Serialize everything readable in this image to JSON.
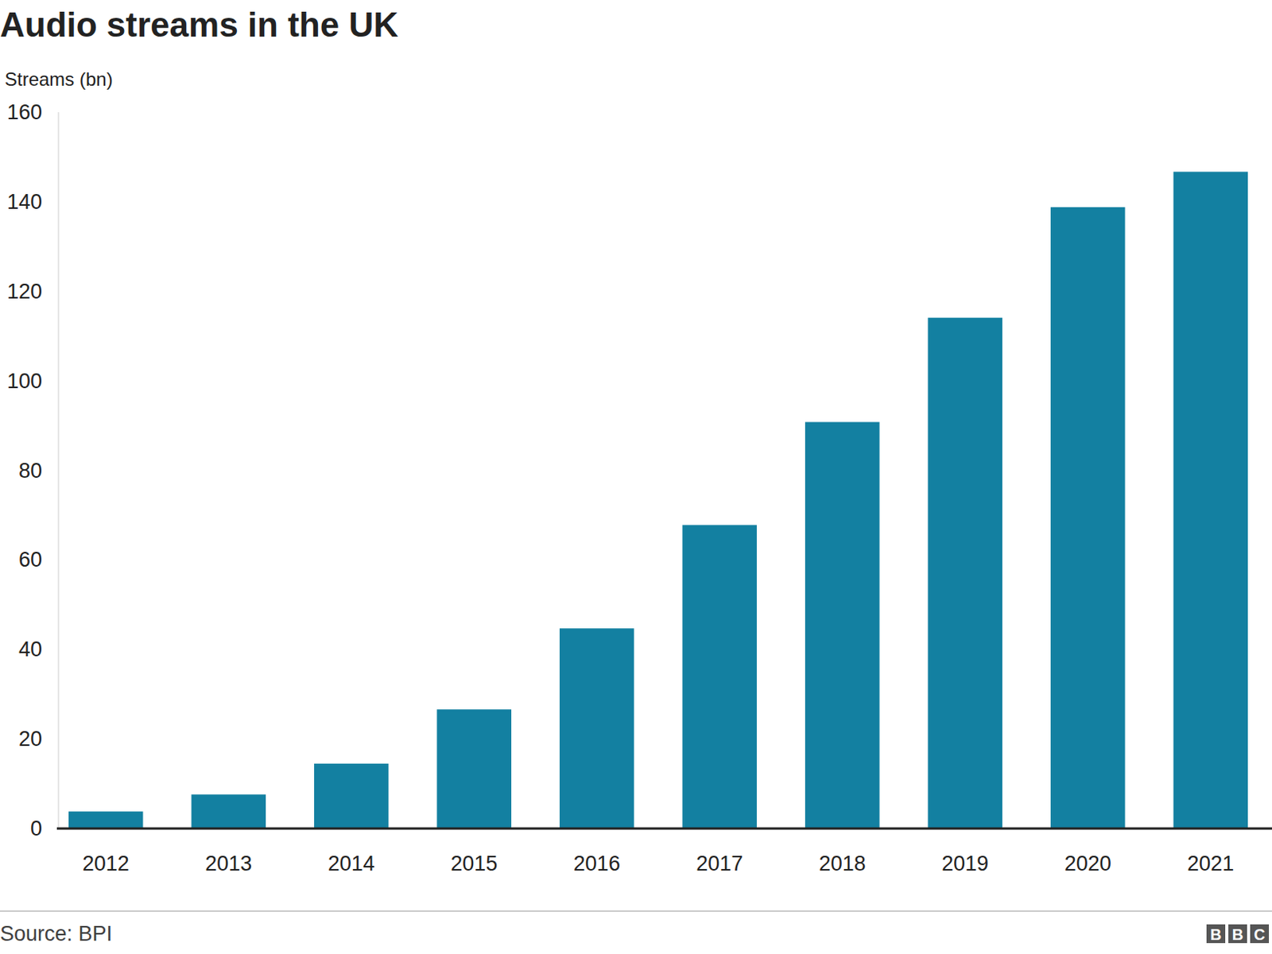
{
  "chart_data": {
    "type": "bar",
    "title": "Audio streams in the UK",
    "y_label": "Streams (bn)",
    "categories": [
      "2012",
      "2013",
      "2014",
      "2015",
      "2016",
      "2017",
      "2018",
      "2019",
      "2020",
      "2021"
    ],
    "values": [
      3.8,
      7.6,
      14.5,
      26.6,
      44.7,
      67.8,
      90.8,
      114.1,
      138.8,
      146.7
    ],
    "color": "#1380a1",
    "ylim": [
      0,
      160
    ],
    "yticks": [
      0,
      20,
      40,
      60,
      80,
      100,
      120,
      140,
      160
    ],
    "grid": false,
    "source": "Source: BPI",
    "logo": "BBC"
  }
}
